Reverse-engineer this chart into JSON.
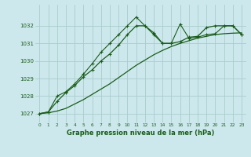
{
  "title": "Graphe pression niveau de la mer (hPa)",
  "bg_color": "#cce8ec",
  "grid_color": "#aacccc",
  "line_color": "#1a5c1a",
  "xlim": [
    -0.5,
    23.5
  ],
  "ylim": [
    1026.5,
    1033.2
  ],
  "yticks": [
    1027,
    1028,
    1029,
    1030,
    1031,
    1032
  ],
  "xticks": [
    0,
    1,
    2,
    3,
    4,
    5,
    6,
    7,
    8,
    9,
    10,
    11,
    12,
    13,
    14,
    15,
    16,
    17,
    18,
    19,
    20,
    21,
    22,
    23
  ],
  "series1_x": [
    0,
    1,
    2,
    3,
    4,
    5,
    6,
    7,
    8,
    9,
    10,
    11,
    12,
    13,
    14,
    15,
    16,
    17,
    18,
    19,
    20,
    21,
    22,
    23
  ],
  "series1_y": [
    1027.0,
    1027.05,
    1027.15,
    1027.3,
    1027.55,
    1027.8,
    1028.1,
    1028.4,
    1028.7,
    1029.05,
    1029.4,
    1029.75,
    1030.05,
    1030.35,
    1030.6,
    1030.82,
    1031.0,
    1031.15,
    1031.3,
    1031.4,
    1031.5,
    1031.55,
    1031.58,
    1031.6
  ],
  "series2_x": [
    0,
    1,
    2,
    3,
    4,
    5,
    6,
    7,
    8,
    9,
    10,
    11,
    12,
    13,
    14,
    15,
    16,
    17,
    18,
    19,
    20,
    21,
    22,
    23
  ],
  "series2_y": [
    1027.0,
    1027.1,
    1027.7,
    1028.2,
    1028.6,
    1029.1,
    1029.5,
    1030.0,
    1030.4,
    1030.9,
    1031.5,
    1032.0,
    1032.0,
    1031.6,
    1031.0,
    1031.0,
    1031.1,
    1031.35,
    1031.4,
    1031.9,
    1032.0,
    1032.0,
    1032.0,
    1031.5
  ],
  "series3_x": [
    0,
    1,
    2,
    3,
    4,
    5,
    6,
    7,
    8,
    9,
    10,
    11,
    12,
    13,
    14,
    15,
    16,
    17,
    18,
    19,
    20,
    21,
    22,
    23
  ],
  "series3_y": [
    1027.0,
    1027.1,
    1028.0,
    1028.25,
    1028.7,
    1029.25,
    1029.85,
    1030.5,
    1031.0,
    1031.5,
    1032.0,
    1032.5,
    1032.0,
    1031.5,
    1031.0,
    1031.0,
    1032.1,
    1031.3,
    1031.35,
    1031.5,
    1031.55,
    1032.0,
    1032.0,
    1031.5
  ]
}
